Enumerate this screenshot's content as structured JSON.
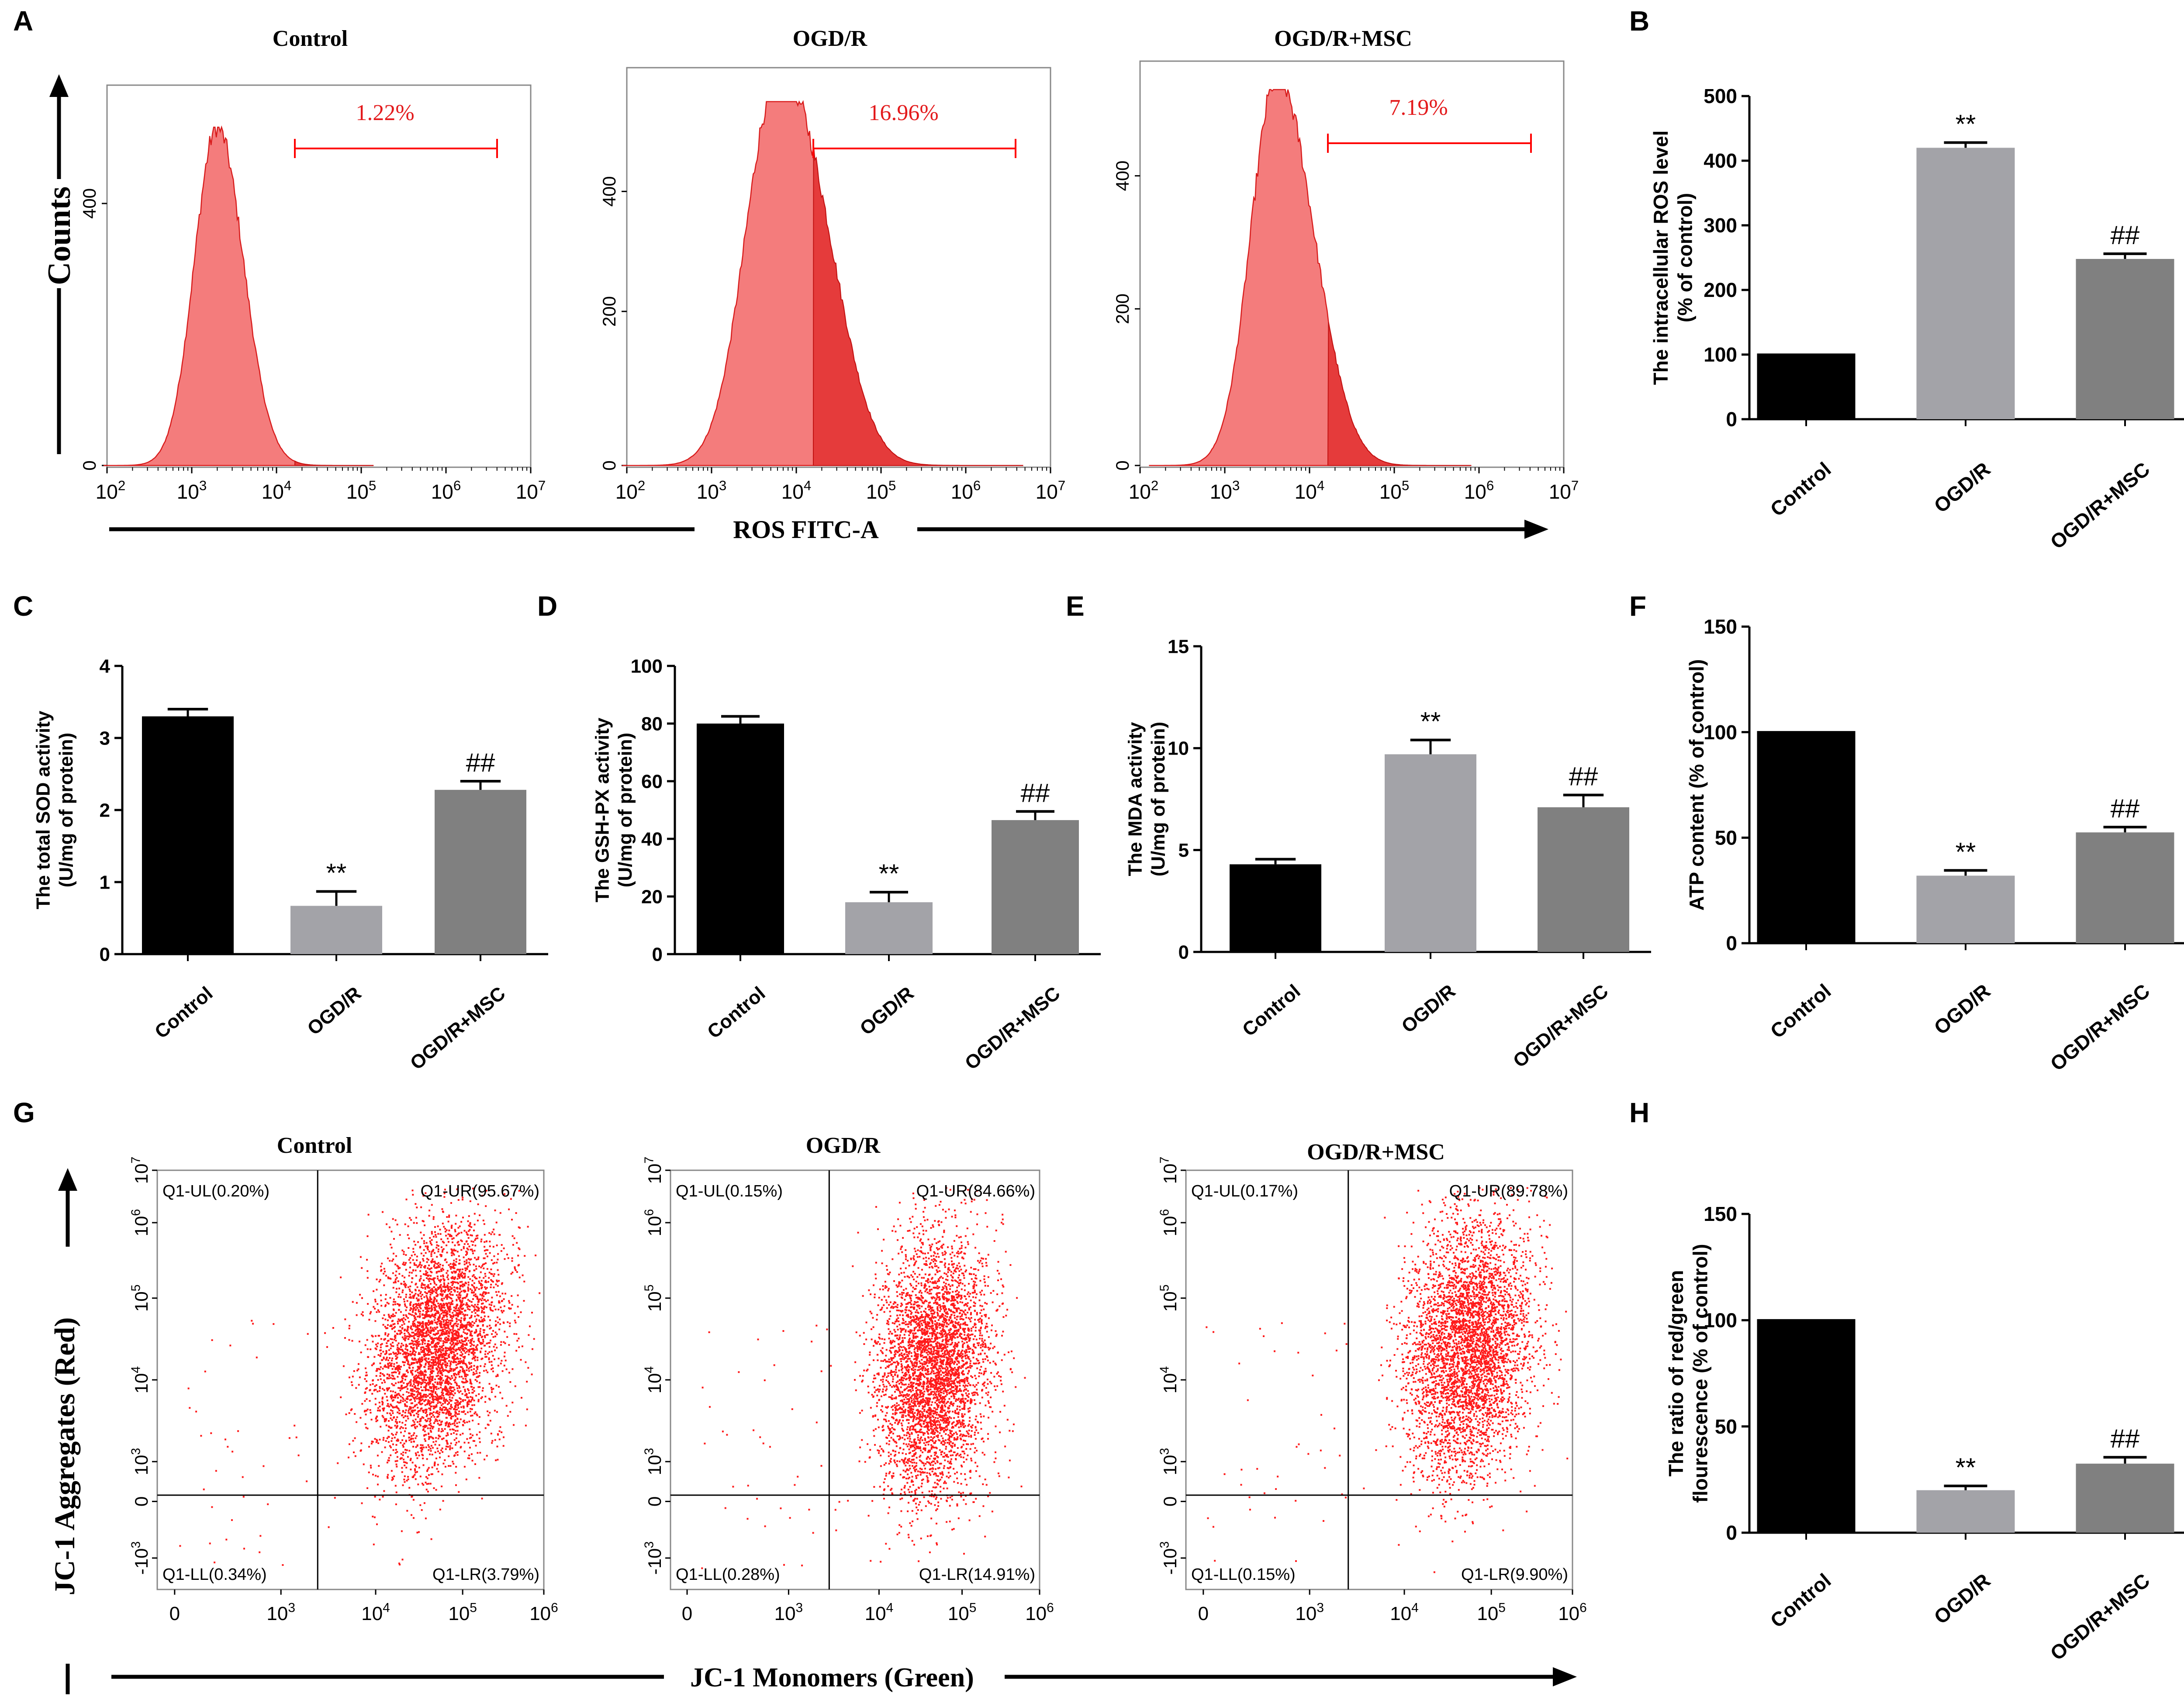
{
  "panels": {
    "A": "A",
    "B": "B",
    "C": "C",
    "D": "D",
    "E": "E",
    "F": "F",
    "G": "G",
    "H": "H"
  },
  "colors": {
    "control": "#000000",
    "ogdr": "#a3a3a8",
    "msc": "#808080",
    "red": "#ff0000",
    "hist_fill": "#f47c7c",
    "hist_gate": "#e53b3b"
  },
  "flow_A": {
    "x_axis_title": "ROS FITC-A",
    "y_axis_title": "Counts",
    "x_ticks": [
      {
        "base": "10",
        "exp": "2"
      },
      {
        "base": "10",
        "exp": "3"
      },
      {
        "base": "10",
        "exp": "4"
      },
      {
        "base": "10",
        "exp": "5"
      },
      {
        "base": "10",
        "exp": "6"
      },
      {
        "base": "10",
        "exp": "7"
      }
    ],
    "plots": [
      {
        "title": "Control",
        "gate_label": "1.22%",
        "y_ticks": [
          "0",
          "400"
        ],
        "peak_log": 3.3
      },
      {
        "title": "OGD/R",
        "gate_label": "16.96%",
        "y_ticks": [
          "0",
          "200",
          "400"
        ],
        "peak_log": 3.75
      },
      {
        "title": "OGD/R+MSC",
        "gate_label": "7.19%",
        "y_ticks": [
          "0",
          "200",
          "400"
        ],
        "peak_log": 3.6
      }
    ]
  },
  "flow_G": {
    "x_axis_title": "JC-1 Monomers (Green)",
    "y_axis_title": "JC-1 Aggregates (Red)",
    "x_ticks": [
      {
        "base": "0",
        "exp": ""
      },
      {
        "base": "10",
        "exp": "3"
      },
      {
        "base": "10",
        "exp": "4"
      },
      {
        "base": "10",
        "exp": "5"
      },
      {
        "base": "10",
        "exp": "6"
      }
    ],
    "y_ticks": [
      {
        "base": "-10",
        "exp": "3"
      },
      {
        "base": "0",
        "exp": ""
      },
      {
        "base": "10",
        "exp": "3"
      },
      {
        "base": "10",
        "exp": "4"
      },
      {
        "base": "10",
        "exp": "5"
      },
      {
        "base": "10",
        "exp": "6"
      },
      {
        "base": "10",
        "exp": "7"
      }
    ],
    "plots": [
      {
        "title": "Control",
        "ul": "Q1-UL(0.20%)",
        "ur": "Q1-UR(95.67%)",
        "ll": "Q1-LL(0.34%)",
        "lr": "Q1-LR(3.79%)"
      },
      {
        "title": "OGD/R",
        "ul": "Q1-UL(0.15%)",
        "ur": "Q1-UR(84.66%)",
        "ll": "Q1-LL(0.28%)",
        "lr": "Q1-LR(14.91%)"
      },
      {
        "title": "OGD/R+MSC",
        "ul": "Q1-UL(0.17%)",
        "ur": "Q1-UR(89.78%)",
        "ll": "Q1-LL(0.15%)",
        "lr": "Q1-LR(9.90%)"
      }
    ]
  },
  "chart_data": [
    {
      "id": "B",
      "type": "bar",
      "categories": [
        "Control",
        "OGD/R",
        "OGD/R+MSC"
      ],
      "values": [
        100,
        420,
        248
      ],
      "errors": [
        0,
        8,
        8
      ],
      "annotations": [
        "",
        "**",
        "##"
      ],
      "ylabel": "The intracellular ROS level (% of control)",
      "ylabel_lines": [
        "The intracellular ROS level",
        "(% of control)"
      ],
      "ylim": [
        0,
        500
      ],
      "yticks": [
        0,
        100,
        200,
        300,
        400,
        500
      ]
    },
    {
      "id": "C",
      "type": "bar",
      "categories": [
        "Control",
        "OGD/R",
        "OGD/R+MSC"
      ],
      "values": [
        3.3,
        0.67,
        2.28
      ],
      "errors": [
        0.1,
        0.2,
        0.12
      ],
      "annotations": [
        "",
        "**",
        "##"
      ],
      "ylabel": "The total SOD activity (U/mg of protein)",
      "ylabel_lines": [
        "The total SOD activity",
        "(U/mg of protein)"
      ],
      "ylim": [
        0,
        4
      ],
      "yticks": [
        0,
        1,
        2,
        3,
        4
      ]
    },
    {
      "id": "D",
      "type": "bar",
      "categories": [
        "Control",
        "OGD/R",
        "OGD/R+MSC"
      ],
      "values": [
        80,
        18,
        46.5
      ],
      "errors": [
        2.5,
        3.5,
        3
      ],
      "annotations": [
        "",
        "**",
        "##"
      ],
      "ylabel": "The GSH-PX activity (U/mg of protein)",
      "ylabel_lines": [
        "The GSH-PX activity",
        "(U/mg of protein)"
      ],
      "ylim": [
        0,
        100
      ],
      "yticks": [
        0,
        20,
        40,
        60,
        80,
        100
      ]
    },
    {
      "id": "E",
      "type": "bar",
      "categories": [
        "Control",
        "OGD/R",
        "OGD/R+MSC"
      ],
      "values": [
        4.3,
        9.7,
        7.1
      ],
      "errors": [
        0.25,
        0.7,
        0.6
      ],
      "annotations": [
        "",
        "**",
        "##"
      ],
      "ylabel": "The MDA activity (U/mg of protein)",
      "ylabel_lines": [
        "The MDA activity",
        "(U/mg of protein)"
      ],
      "ylim": [
        0,
        15
      ],
      "yticks": [
        0,
        5,
        10,
        15
      ]
    },
    {
      "id": "F",
      "type": "bar",
      "categories": [
        "Control",
        "OGD/R",
        "OGD/R+MSC"
      ],
      "values": [
        100,
        32,
        52.5
      ],
      "errors": [
        0,
        2.5,
        2.5
      ],
      "annotations": [
        "",
        "**",
        "##"
      ],
      "ylabel": "ATP content (% of control)",
      "ylabel_lines": [
        "ATP content (% of control)"
      ],
      "ylim": [
        0,
        150
      ],
      "yticks": [
        0,
        50,
        100,
        150
      ]
    },
    {
      "id": "H",
      "type": "bar",
      "categories": [
        "Control",
        "OGD/R",
        "OGD/R+MSC"
      ],
      "values": [
        100,
        20,
        32.5
      ],
      "errors": [
        0,
        2,
        3
      ],
      "annotations": [
        "",
        "**",
        "##"
      ],
      "ylabel": "The ratio of red/green flourescence (% of control)",
      "ylabel_lines": [
        "The ratio of red/green",
        "flourescence (% of control)"
      ],
      "ylim": [
        0,
        150
      ],
      "yticks": [
        0,
        50,
        100,
        150
      ]
    }
  ]
}
